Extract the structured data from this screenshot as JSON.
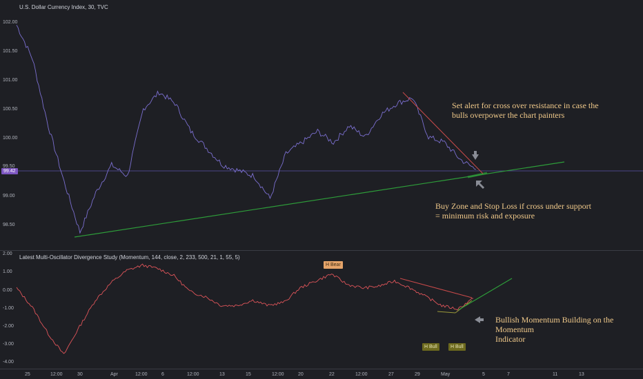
{
  "top_panel": {
    "title": "U.S. Dollar Currency Index, 30, TVC",
    "y_ticks": [
      "102.00",
      "101.50",
      "101.00",
      "100.50",
      "100.00",
      "99.50",
      "99.00",
      "98.50"
    ],
    "last_price": "99.42",
    "annotation_resistance": [
      "Set alert for cross over resistance in case the",
      "bulls overpower the chart painters"
    ],
    "annotation_support": [
      "Buy Zone and Stop Loss if cross under support",
      "= minimum risk and exposure"
    ]
  },
  "bottom_panel": {
    "title": "Latest Multi-Oscillator Divergence Study (Momentum, 144, close, 2, 233, 500, 21, 1, 55, 5)",
    "y_ticks": [
      "2.00",
      "1.00",
      "0.00",
      "-1.00",
      "-2.00",
      "-3.00",
      "-4.00"
    ],
    "tag_bear": "H Bear",
    "tag_bull_1": "H Bull",
    "tag_bull_2": "H Bull",
    "annotation_momentum": [
      "Bullish Momentum Building on the Momentum",
      "Indicator"
    ]
  },
  "x_axis": {
    "labels": [
      "25",
      "12:00",
      "30",
      "Apr",
      "12:00",
      "6",
      "12:00",
      "13",
      "15",
      "12:00",
      "20",
      "22",
      "12:00",
      "27",
      "29",
      "May",
      "5",
      "7",
      "11",
      "13"
    ]
  },
  "colors": {
    "price_line": "#7b6fd0",
    "momentum_line": "#e0555a",
    "support_line": "#2e9e3a",
    "resistance_line": "#c94a4a",
    "annotation_text": "#f0c98a",
    "price_badge": "#7e57c2"
  },
  "chart_data": [
    {
      "type": "line",
      "title": "U.S. Dollar Currency Index, 30, TVC",
      "ylim": [
        98.2,
        102.2
      ],
      "series": [
        {
          "name": "",
          "x": [
            "25",
            "",
            "12:00",
            "",
            "30",
            "",
            "Apr",
            "",
            "12:00",
            "",
            "6",
            "",
            "12:00",
            "",
            "13",
            "",
            "15",
            "",
            "12:00",
            "",
            "20",
            "",
            "22",
            "",
            "12:00",
            "",
            "27",
            "",
            "29",
            ""
          ],
          "values": [
            102.0,
            101.4,
            100.2,
            99.2,
            98.3,
            99.0,
            99.5,
            99.3,
            100.5,
            100.8,
            100.6,
            100.1,
            99.8,
            99.5,
            99.4,
            99.3,
            98.9,
            99.7,
            99.9,
            100.1,
            99.9,
            100.2,
            100.0,
            100.4,
            100.6,
            100.7,
            100.0,
            99.9,
            99.6,
            99.42
          ]
        }
      ],
      "lines": [
        {
          "name": "",
          "from": {
            "x": "30",
            "y": 98.25
          },
          "to": {
            "x": "May",
            "y": 99.6
          }
        },
        {
          "name": "",
          "from": {
            "x": "12:00",
            "y": 100.8
          },
          "to": {
            "x": "29",
            "y": 99.42
          }
        }
      ]
    },
    {
      "type": "line",
      "title": "Latest Multi-Oscillator Divergence Study (Momentum, 144, close, 2, 233, 500, 21, 1, 55, 5)",
      "ylim": [
        -4.2,
        2.2
      ],
      "series": [
        {
          "name": "",
          "values": [
            0.2,
            -0.9,
            -2.4,
            -3.6,
            -2.0,
            -0.5,
            0.5,
            1.2,
            1.5,
            1.3,
            0.9,
            0.0,
            -0.3,
            -0.8,
            -0.8,
            -0.5,
            -0.8,
            -0.6,
            0.2,
            0.6,
            1.0,
            0.4,
            0.2,
            0.3,
            0.6,
            0.2,
            -0.3,
            -0.8,
            -1.0,
            -0.4
          ]
        }
      ]
    }
  ]
}
